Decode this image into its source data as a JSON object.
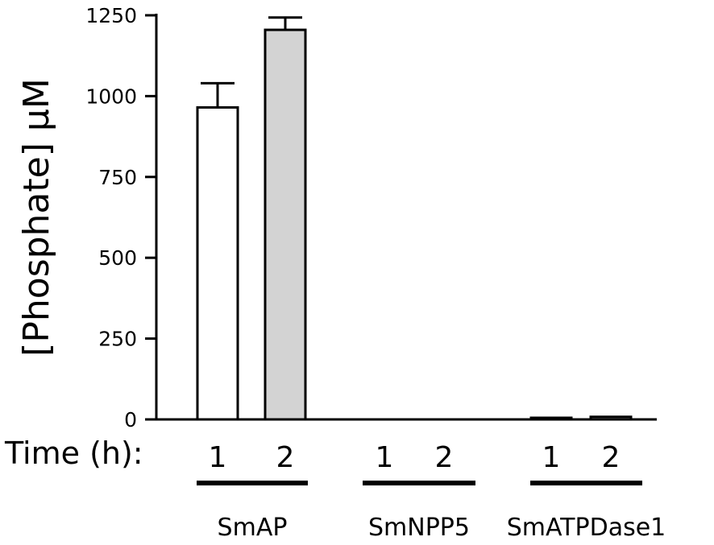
{
  "chart_data": {
    "type": "bar",
    "title": "",
    "xlabel": "",
    "ylabel": "[Phosphate] μM",
    "ylim": [
      0,
      1250
    ],
    "yticks": [
      "0",
      "250",
      "500",
      "750",
      "1000",
      "1250"
    ],
    "row_label": "Time (h):",
    "groups": [
      {
        "name": "SmAP",
        "bars": [
          {
            "time": "1",
            "value": 965,
            "error": 75,
            "fill": "#ffffff"
          },
          {
            "time": "2",
            "value": 1205,
            "error": 38,
            "fill": "#d3d3d3"
          }
        ]
      },
      {
        "name": "SmNPP5",
        "bars": [
          {
            "time": "1",
            "value": 0,
            "error": 0,
            "fill": "#ffffff"
          },
          {
            "time": "2",
            "value": 0,
            "error": 0,
            "fill": "#d3d3d3"
          }
        ]
      },
      {
        "name": "SmATPDase1",
        "bars": [
          {
            "time": "1",
            "value": 5,
            "error": 0,
            "fill": "#ffffff"
          },
          {
            "time": "2",
            "value": 8,
            "error": 0,
            "fill": "#d3d3d3"
          }
        ]
      }
    ],
    "grid": false,
    "legend": "none"
  }
}
